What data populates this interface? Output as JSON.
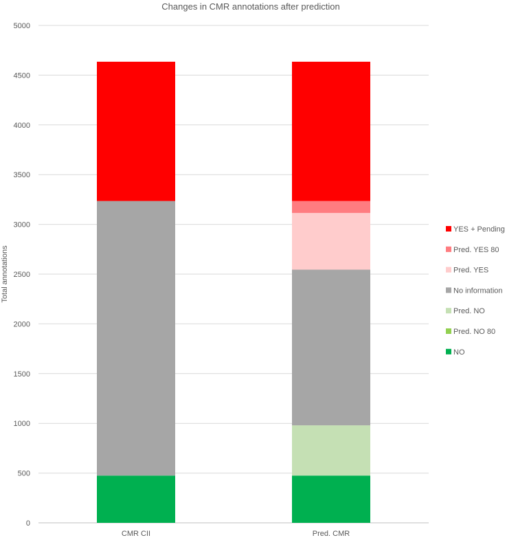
{
  "chart_data": {
    "type": "bar",
    "stacked": true,
    "title": "Changes in CMR annotations after prediction",
    "xlabel": "",
    "ylabel": "Total annotations",
    "ylim": [
      0,
      5000
    ],
    "yticks": [
      0,
      500,
      1000,
      1500,
      2000,
      2500,
      3000,
      3500,
      4000,
      4500,
      5000
    ],
    "grid": true,
    "legend_position": "right",
    "categories": [
      "CMR CII",
      "Pred. CMR"
    ],
    "series": [
      {
        "name": "NO",
        "color": "#00b050",
        "values": [
          475,
          475
        ]
      },
      {
        "name": "Pred. NO 80",
        "color": "#92d050",
        "values": [
          0,
          0
        ]
      },
      {
        "name": "Pred. NO",
        "color": "#c5e0b4",
        "values": [
          0,
          505
        ]
      },
      {
        "name": "No information",
        "color": "#a6a6a6",
        "values": [
          2760,
          1565
        ]
      },
      {
        "name": "Pred. YES",
        "color": "#ffcccc",
        "values": [
          0,
          570
        ]
      },
      {
        "name": "Pred. YES 80",
        "color": "#ff7c80",
        "values": [
          0,
          120
        ]
      },
      {
        "name": "YES + Pending",
        "color": "#ff0000",
        "values": [
          1400,
          1400
        ]
      }
    ],
    "legend_order": [
      "YES + Pending",
      "Pred. YES 80",
      "Pred. YES",
      "No information",
      "Pred. NO",
      "Pred. NO 80",
      "NO"
    ]
  }
}
